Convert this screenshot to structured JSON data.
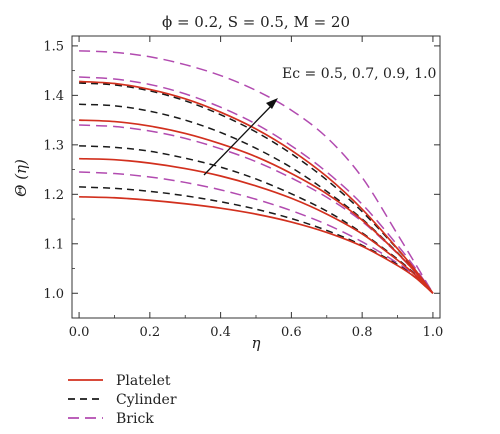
{
  "chart_data": {
    "type": "line",
    "title": "ϕ = 0.2, S = 0.5, M = 20",
    "xlabel": "η",
    "ylabel": "Θ (η)",
    "xlim": [
      -0.02,
      1.02
    ],
    "ylim": [
      0.95,
      1.52
    ],
    "x_ticks": [
      0.0,
      0.2,
      0.4,
      0.6,
      0.8,
      1.0
    ],
    "x_tick_labels": [
      "0.0",
      "0.2",
      "0.4",
      "0.6",
      "0.8",
      "1.0"
    ],
    "y_ticks": [
      1.0,
      1.1,
      1.2,
      1.3,
      1.4,
      1.5
    ],
    "y_tick_labels": [
      "1.0",
      "1.1",
      "1.2",
      "1.3",
      "1.4",
      "1.5"
    ],
    "annotation": "Ec = 0.5, 0.7, 0.9, 1.0",
    "legend_position": "below",
    "x": [
      0.0,
      0.1,
      0.2,
      0.3,
      0.4,
      0.5,
      0.6,
      0.7,
      0.8,
      0.9,
      0.95,
      1.0
    ],
    "series": [
      {
        "name": "Platelet",
        "color": "#d2301e",
        "dash": "solid",
        "curves": [
          [
            1.195,
            1.193,
            1.188,
            1.181,
            1.172,
            1.16,
            1.144,
            1.123,
            1.095,
            1.056,
            1.032,
            1.0
          ],
          [
            1.272,
            1.27,
            1.263,
            1.252,
            1.237,
            1.217,
            1.192,
            1.16,
            1.12,
            1.067,
            1.037,
            1.0
          ],
          [
            1.35,
            1.347,
            1.338,
            1.323,
            1.302,
            1.276,
            1.242,
            1.201,
            1.148,
            1.081,
            1.043,
            1.0
          ],
          [
            1.428,
            1.424,
            1.412,
            1.393,
            1.366,
            1.332,
            1.289,
            1.236,
            1.17,
            1.09,
            1.047,
            1.0
          ]
        ]
      },
      {
        "name": "Cylinder",
        "color": "#1a1a1a",
        "dash": "dashed",
        "curves": [
          [
            1.215,
            1.212,
            1.206,
            1.197,
            1.185,
            1.17,
            1.151,
            1.127,
            1.097,
            1.058,
            1.032,
            1.0
          ],
          [
            1.298,
            1.295,
            1.287,
            1.273,
            1.255,
            1.231,
            1.201,
            1.166,
            1.122,
            1.069,
            1.038,
            1.0
          ],
          [
            1.382,
            1.379,
            1.368,
            1.35,
            1.325,
            1.293,
            1.254,
            1.206,
            1.15,
            1.082,
            1.044,
            1.0
          ],
          [
            1.425,
            1.421,
            1.409,
            1.389,
            1.361,
            1.326,
            1.282,
            1.229,
            1.165,
            1.089,
            1.047,
            1.0
          ]
        ]
      },
      {
        "name": "Brick",
        "color": "#b24bb0",
        "dash": "dashed",
        "curves": [
          [
            1.245,
            1.242,
            1.235,
            1.224,
            1.209,
            1.19,
            1.167,
            1.139,
            1.104,
            1.061,
            1.035,
            1.0
          ],
          [
            1.34,
            1.337,
            1.328,
            1.313,
            1.292,
            1.266,
            1.233,
            1.194,
            1.145,
            1.08,
            1.042,
            1.0
          ],
          [
            1.437,
            1.433,
            1.422,
            1.403,
            1.376,
            1.342,
            1.298,
            1.245,
            1.18,
            1.097,
            1.051,
            1.0
          ],
          [
            1.49,
            1.487,
            1.478,
            1.462,
            1.44,
            1.41,
            1.37,
            1.315,
            1.234,
            1.119,
            1.06,
            1.0
          ]
        ]
      }
    ]
  }
}
